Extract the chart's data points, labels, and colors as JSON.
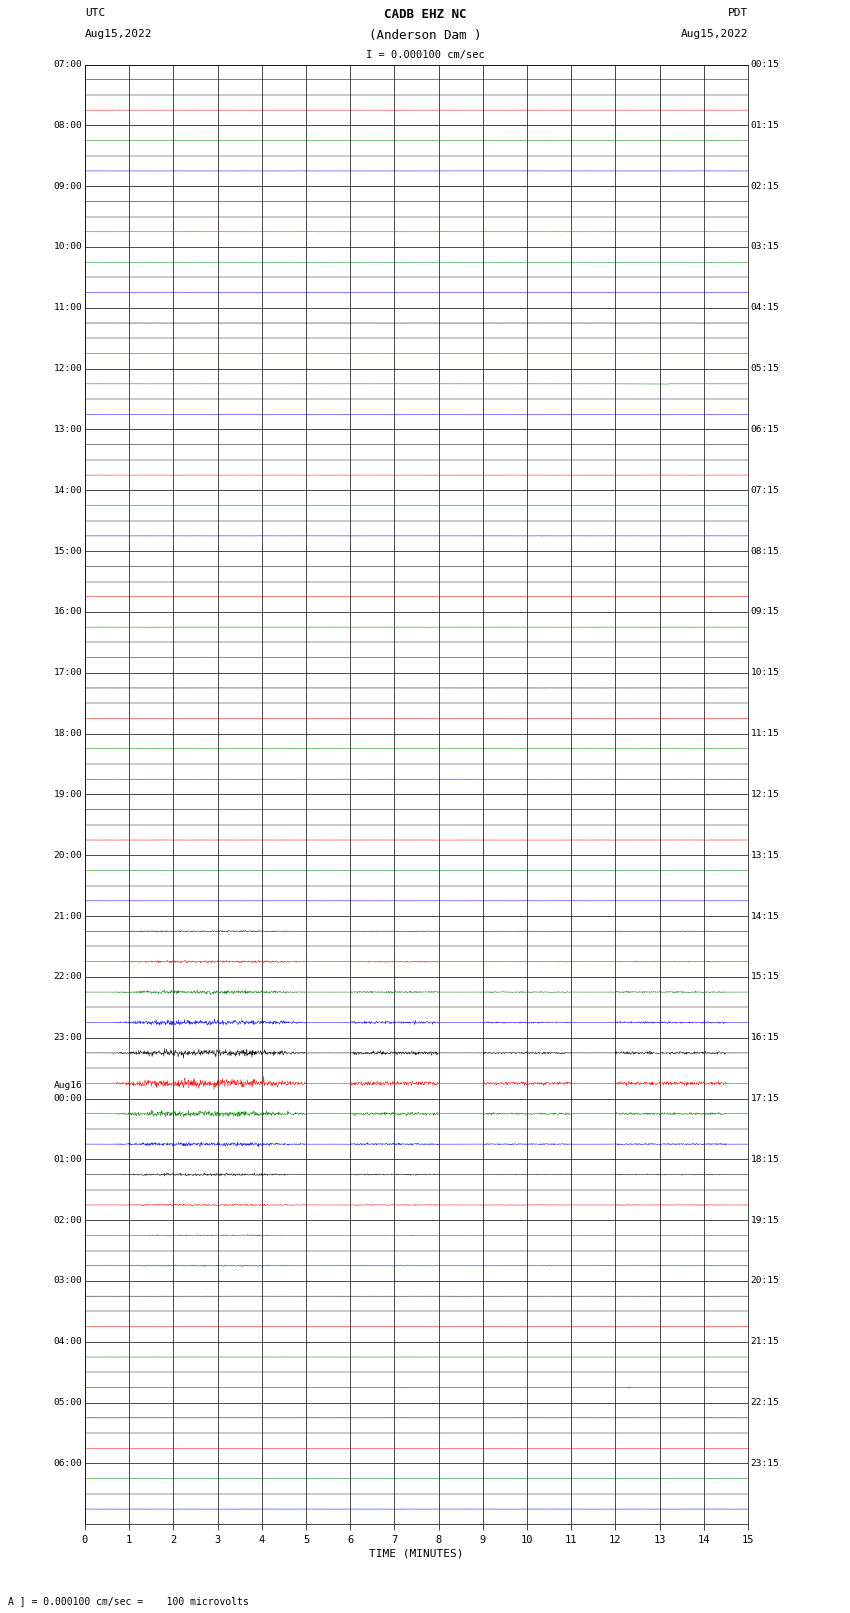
{
  "title_line1": "CADB EHZ NC",
  "title_line2": "(Anderson Dam )",
  "title_scale": "I = 0.000100 cm/sec",
  "left_header_line1": "UTC",
  "left_header_line2": "Aug15,2022",
  "right_header_line1": "PDT",
  "right_header_line2": "Aug15,2022",
  "bottom_label": "TIME (MINUTES)",
  "bottom_note": "A ] = 0.000100 cm/sec =    100 microvolts",
  "utc_labels": [
    "07:00",
    "08:00",
    "09:00",
    "10:00",
    "11:00",
    "12:00",
    "13:00",
    "14:00",
    "15:00",
    "16:00",
    "17:00",
    "18:00",
    "19:00",
    "20:00",
    "21:00",
    "22:00",
    "23:00",
    "Aug16\n00:00",
    "01:00",
    "02:00",
    "03:00",
    "04:00",
    "05:00",
    "06:00"
  ],
  "pdt_labels": [
    "00:15",
    "01:15",
    "02:15",
    "03:15",
    "04:15",
    "05:15",
    "06:15",
    "07:15",
    "08:15",
    "09:15",
    "10:15",
    "11:15",
    "12:15",
    "13:15",
    "14:15",
    "15:15",
    "16:15",
    "17:15",
    "18:15",
    "19:15",
    "20:15",
    "21:15",
    "22:15",
    "23:15"
  ],
  "num_rows": 48,
  "time_minutes": 15,
  "background_color": "#ffffff",
  "trace_colors": [
    "#000000",
    "#ff0000",
    "#008000",
    "#0000ff"
  ],
  "base_noise_amp": 0.004,
  "trace_linewidth": 0.35,
  "high_activity_rows": [
    28,
    29,
    30,
    31,
    32,
    33,
    34,
    35,
    36,
    37,
    38,
    39
  ],
  "high_activity_amps": [
    0.06,
    0.12,
    0.18,
    0.25,
    0.35,
    0.45,
    0.3,
    0.2,
    0.12,
    0.08,
    0.06,
    0.04
  ]
}
